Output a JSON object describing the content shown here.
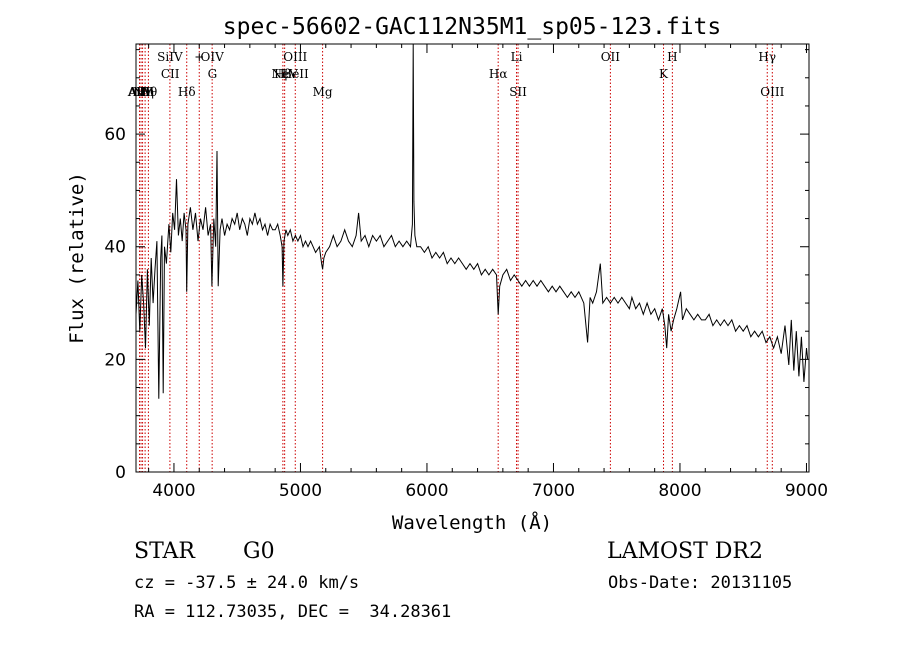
{
  "chart_data": {
    "type": "line",
    "title": "spec-56602-GAC112N35M1_sp05-123.fits",
    "xlabel": "Wavelength (Å)",
    "ylabel": "Flux (relative)",
    "xlim": [
      3700,
      9020
    ],
    "ylim": [
      0,
      76
    ],
    "x_ticks": [
      4000,
      5000,
      6000,
      7000,
      8000,
      9000
    ],
    "y_ticks": [
      0,
      20,
      40,
      60
    ],
    "line_color": "#000000",
    "marker_color": "#cc0000",
    "grid": false,
    "series": [
      {
        "values": [
          [
            3700,
            28
          ],
          [
            3715,
            34
          ],
          [
            3730,
            25
          ],
          [
            3745,
            35
          ],
          [
            3760,
            30
          ],
          [
            3775,
            22
          ],
          [
            3790,
            36
          ],
          [
            3805,
            26
          ],
          [
            3820,
            38
          ],
          [
            3835,
            30
          ],
          [
            3850,
            36
          ],
          [
            3865,
            41
          ],
          [
            3880,
            13
          ],
          [
            3895,
            38
          ],
          [
            3905,
            42
          ],
          [
            3915,
            14
          ],
          [
            3925,
            40
          ],
          [
            3940,
            37
          ],
          [
            3960,
            44
          ],
          [
            3975,
            39
          ],
          [
            3990,
            46
          ],
          [
            4005,
            43
          ],
          [
            4020,
            52
          ],
          [
            4035,
            42
          ],
          [
            4050,
            45
          ],
          [
            4065,
            41
          ],
          [
            4080,
            46
          ],
          [
            4095,
            43
          ],
          [
            4101,
            32
          ],
          [
            4110,
            44
          ],
          [
            4130,
            47
          ],
          [
            4150,
            43
          ],
          [
            4170,
            46
          ],
          [
            4190,
            41
          ],
          [
            4210,
            45
          ],
          [
            4230,
            43
          ],
          [
            4250,
            47
          ],
          [
            4270,
            42
          ],
          [
            4290,
            44
          ],
          [
            4300,
            33
          ],
          [
            4315,
            45
          ],
          [
            4330,
            40
          ],
          [
            4340,
            57
          ],
          [
            4350,
            33
          ],
          [
            4365,
            43
          ],
          [
            4380,
            45
          ],
          [
            4400,
            42
          ],
          [
            4420,
            44
          ],
          [
            4440,
            43
          ],
          [
            4460,
            45
          ],
          [
            4480,
            44
          ],
          [
            4500,
            46
          ],
          [
            4520,
            43
          ],
          [
            4540,
            45
          ],
          [
            4560,
            44
          ],
          [
            4580,
            42
          ],
          [
            4600,
            45
          ],
          [
            4620,
            44
          ],
          [
            4640,
            46
          ],
          [
            4660,
            44
          ],
          [
            4680,
            45
          ],
          [
            4700,
            43
          ],
          [
            4720,
            44
          ],
          [
            4740,
            42
          ],
          [
            4760,
            44
          ],
          [
            4780,
            43
          ],
          [
            4800,
            43
          ],
          [
            4820,
            44
          ],
          [
            4840,
            42
          ],
          [
            4855,
            40
          ],
          [
            4861,
            33
          ],
          [
            4870,
            41
          ],
          [
            4885,
            43
          ],
          [
            4900,
            42
          ],
          [
            4920,
            43
          ],
          [
            4940,
            41
          ],
          [
            4960,
            42
          ],
          [
            4980,
            41
          ],
          [
            5000,
            42
          ],
          [
            5020,
            40
          ],
          [
            5040,
            41
          ],
          [
            5060,
            40
          ],
          [
            5080,
            41
          ],
          [
            5100,
            40
          ],
          [
            5120,
            39
          ],
          [
            5150,
            40
          ],
          [
            5167,
            37
          ],
          [
            5175,
            36
          ],
          [
            5185,
            38
          ],
          [
            5200,
            39
          ],
          [
            5230,
            40
          ],
          [
            5260,
            42
          ],
          [
            5290,
            40
          ],
          [
            5320,
            41
          ],
          [
            5350,
            43
          ],
          [
            5380,
            41
          ],
          [
            5410,
            40
          ],
          [
            5440,
            42
          ],
          [
            5460,
            46
          ],
          [
            5480,
            41
          ],
          [
            5510,
            42
          ],
          [
            5540,
            40
          ],
          [
            5570,
            42
          ],
          [
            5600,
            41
          ],
          [
            5630,
            42
          ],
          [
            5660,
            40
          ],
          [
            5690,
            41
          ],
          [
            5720,
            42
          ],
          [
            5750,
            40
          ],
          [
            5780,
            41
          ],
          [
            5810,
            40
          ],
          [
            5840,
            41
          ],
          [
            5870,
            40
          ],
          [
            5885,
            44
          ],
          [
            5891,
            76
          ],
          [
            5897,
            48
          ],
          [
            5905,
            42
          ],
          [
            5920,
            40
          ],
          [
            5950,
            40
          ],
          [
            5980,
            39
          ],
          [
            6010,
            40
          ],
          [
            6040,
            38
          ],
          [
            6070,
            39
          ],
          [
            6100,
            38
          ],
          [
            6130,
            39
          ],
          [
            6160,
            37
          ],
          [
            6190,
            38
          ],
          [
            6220,
            37
          ],
          [
            6250,
            38
          ],
          [
            6280,
            37
          ],
          [
            6310,
            36
          ],
          [
            6340,
            37
          ],
          [
            6370,
            36
          ],
          [
            6400,
            37
          ],
          [
            6430,
            35
          ],
          [
            6460,
            36
          ],
          [
            6490,
            35
          ],
          [
            6520,
            36
          ],
          [
            6550,
            35
          ],
          [
            6563,
            28
          ],
          [
            6575,
            33
          ],
          [
            6600,
            35
          ],
          [
            6630,
            36
          ],
          [
            6660,
            34
          ],
          [
            6690,
            35
          ],
          [
            6720,
            34
          ],
          [
            6750,
            33
          ],
          [
            6780,
            34
          ],
          [
            6810,
            33
          ],
          [
            6840,
            34
          ],
          [
            6870,
            33
          ],
          [
            6900,
            34
          ],
          [
            6930,
            33
          ],
          [
            6960,
            32
          ],
          [
            6990,
            33
          ],
          [
            7020,
            32
          ],
          [
            7050,
            33
          ],
          [
            7080,
            32
          ],
          [
            7110,
            31
          ],
          [
            7140,
            32
          ],
          [
            7170,
            31
          ],
          [
            7200,
            32
          ],
          [
            7240,
            30
          ],
          [
            7270,
            23
          ],
          [
            7290,
            31
          ],
          [
            7310,
            30
          ],
          [
            7340,
            32
          ],
          [
            7370,
            37
          ],
          [
            7390,
            30
          ],
          [
            7420,
            31
          ],
          [
            7450,
            30
          ],
          [
            7480,
            31
          ],
          [
            7510,
            30
          ],
          [
            7540,
            31
          ],
          [
            7570,
            30
          ],
          [
            7600,
            29
          ],
          [
            7620,
            31
          ],
          [
            7650,
            29
          ],
          [
            7680,
            30
          ],
          [
            7710,
            28
          ],
          [
            7740,
            30
          ],
          [
            7770,
            28
          ],
          [
            7800,
            29
          ],
          [
            7830,
            27
          ],
          [
            7860,
            29
          ],
          [
            7880,
            26
          ],
          [
            7895,
            22
          ],
          [
            7910,
            28
          ],
          [
            7930,
            25
          ],
          [
            7950,
            27
          ],
          [
            7975,
            29
          ],
          [
            8005,
            32
          ],
          [
            8020,
            27
          ],
          [
            8050,
            29
          ],
          [
            8080,
            28
          ],
          [
            8110,
            27
          ],
          [
            8140,
            28
          ],
          [
            8170,
            27
          ],
          [
            8200,
            27
          ],
          [
            8230,
            28
          ],
          [
            8260,
            26
          ],
          [
            8290,
            27
          ],
          [
            8320,
            26
          ],
          [
            8350,
            27
          ],
          [
            8380,
            26
          ],
          [
            8410,
            27
          ],
          [
            8440,
            25
          ],
          [
            8470,
            26
          ],
          [
            8500,
            25
          ],
          [
            8530,
            26
          ],
          [
            8560,
            24
          ],
          [
            8590,
            25
          ],
          [
            8620,
            24
          ],
          [
            8650,
            25
          ],
          [
            8680,
            23
          ],
          [
            8710,
            24
          ],
          [
            8740,
            22
          ],
          [
            8770,
            24
          ],
          [
            8800,
            21
          ],
          [
            8830,
            26
          ],
          [
            8860,
            19
          ],
          [
            8880,
            27
          ],
          [
            8900,
            18
          ],
          [
            8920,
            25
          ],
          [
            8940,
            17
          ],
          [
            8960,
            24
          ],
          [
            8980,
            16
          ],
          [
            9000,
            22
          ],
          [
            9010,
            20
          ]
        ]
      }
    ],
    "line_markers": [
      {
        "x": 3728,
        "label": "AlII",
        "row": 3
      },
      {
        "x": 3740,
        "label": "AlIII",
        "row": 3
      },
      {
        "x": 3752,
        "label": "NV",
        "row": 3
      },
      {
        "x": 3772,
        "label": "Hη",
        "row": 3
      },
      {
        "x": 3798,
        "label": "Hθ",
        "row": 3
      },
      {
        "x": 3968,
        "label": "SiIV",
        "row": 1
      },
      {
        "x": 3970,
        "label": "CII",
        "row": 2
      },
      {
        "x": 4101,
        "label": "Hδ",
        "row": 3
      },
      {
        "x": 4200,
        "label": "+",
        "row": 1
      },
      {
        "x": 4302,
        "label": "OIV",
        "row": 1
      },
      {
        "x": 4304,
        "label": "G",
        "row": 2
      },
      {
        "x": 4861,
        "label": "Hβ",
        "row": 2
      },
      {
        "x": 4875,
        "label": "NeV",
        "row": 2
      },
      {
        "x": 4959,
        "label": "OIII",
        "row": 1
      },
      {
        "x": 4959,
        "label": "HeII",
        "row": 2
      },
      {
        "x": 5175,
        "label": "Mg",
        "row": 3
      },
      {
        "x": 6563,
        "label": "Hα",
        "row": 2
      },
      {
        "x": 6708,
        "label": "Li",
        "row": 1
      },
      {
        "x": 6720,
        "label": "SII",
        "row": 3
      },
      {
        "x": 7450,
        "label": "OII",
        "row": 1
      },
      {
        "x": 7870,
        "label": "K",
        "row": 2
      },
      {
        "x": 7940,
        "label": "H",
        "row": 1
      },
      {
        "x": 8690,
        "label": "Hγ",
        "row": 1
      },
      {
        "x": 8730,
        "label": "OIII",
        "row": 3
      }
    ]
  },
  "info": {
    "object_class": "STAR",
    "subclass": "G0",
    "survey": "LAMOST DR2",
    "redshift": "cz = -37.5 ± 24.0 km/s",
    "obs_date": "Obs-Date: 20131105",
    "coords": "RA = 112.73035, DEC =  34.28361"
  }
}
